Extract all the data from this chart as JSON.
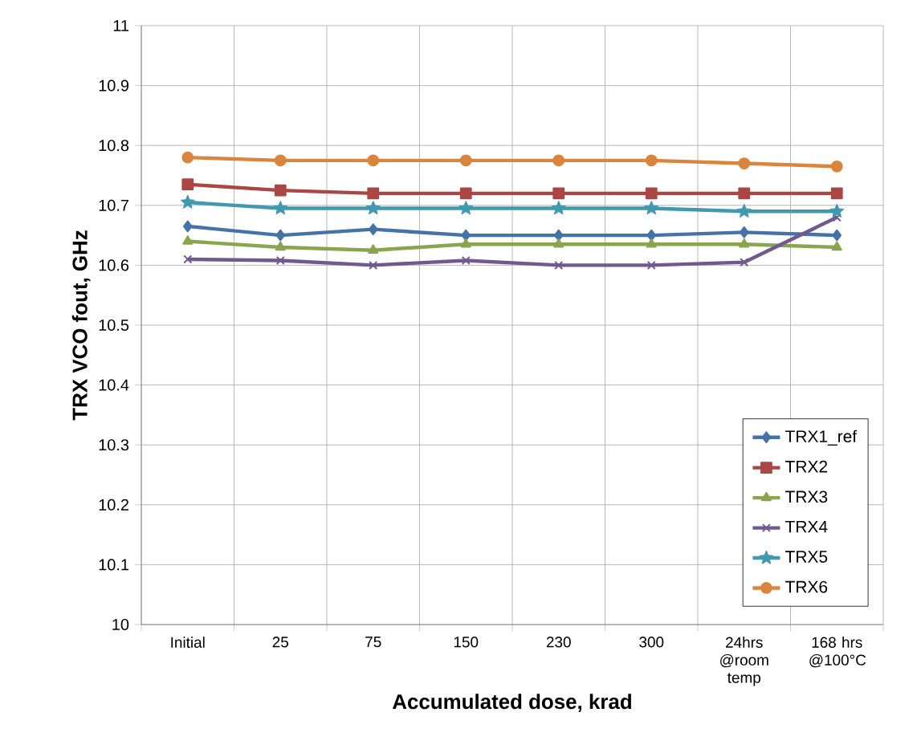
{
  "chart_data": {
    "type": "line",
    "xlabel": "Accumulated dose, krad",
    "ylabel": "TRX VCO fout, GHz",
    "categories": [
      "Initial",
      "25",
      "75",
      "150",
      "230",
      "300",
      "24hrs @room temp",
      "168 hrs @100°C"
    ],
    "ylim": [
      10,
      11
    ],
    "yticks": [
      10,
      10.1,
      10.2,
      10.3,
      10.4,
      10.5,
      10.6,
      10.7,
      10.8,
      10.9,
      11
    ],
    "grid": true,
    "legend": "bottom right",
    "line_style": "solid",
    "series": [
      {
        "name": "TRX1_ref",
        "color": "#4572a7",
        "marker": "diamond",
        "values": [
          10.665,
          10.65,
          10.66,
          10.65,
          10.65,
          10.65,
          10.655,
          10.65
        ]
      },
      {
        "name": "TRX2",
        "color": "#aa4643",
        "marker": "square",
        "values": [
          10.735,
          10.725,
          10.72,
          10.72,
          10.72,
          10.72,
          10.72,
          10.72
        ]
      },
      {
        "name": "TRX3",
        "color": "#89a54e",
        "marker": "triangle",
        "values": [
          10.64,
          10.63,
          10.625,
          10.635,
          10.635,
          10.635,
          10.635,
          10.63
        ]
      },
      {
        "name": "TRX4",
        "color": "#71588f",
        "marker": "cross",
        "values": [
          10.61,
          10.608,
          10.6,
          10.608,
          10.6,
          10.6,
          10.605,
          10.68
        ]
      },
      {
        "name": "TRX5",
        "color": "#4198af",
        "marker": "star",
        "values": [
          10.705,
          10.695,
          10.695,
          10.695,
          10.695,
          10.695,
          10.69,
          10.69
        ]
      },
      {
        "name": "TRX6",
        "color": "#db843d",
        "marker": "circle",
        "values": [
          10.78,
          10.775,
          10.775,
          10.775,
          10.775,
          10.775,
          10.77,
          10.765
        ]
      }
    ]
  }
}
